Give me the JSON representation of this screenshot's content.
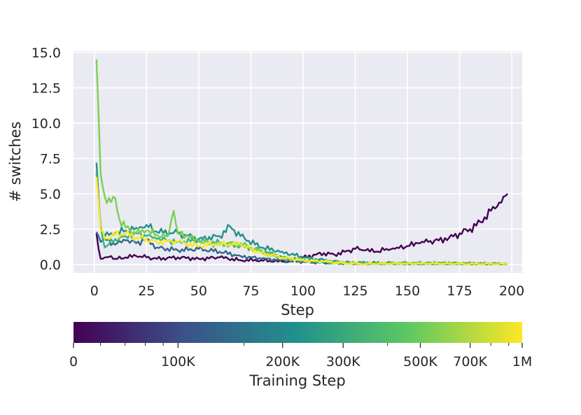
{
  "chart_data": {
    "type": "line",
    "xlabel": "Step",
    "ylabel": "# switches",
    "xlim": [
      -10,
      205
    ],
    "ylim": [
      -0.6,
      15.1
    ],
    "xticks": [
      0,
      25,
      50,
      75,
      100,
      125,
      150,
      175,
      200
    ],
    "yticks": [
      "0.0",
      "2.5",
      "5.0",
      "7.5",
      "10.0",
      "12.5",
      "15.0"
    ],
    "grid": true,
    "background": "#eaeaf2",
    "series": [
      {
        "color": "#440154",
        "x": [
          1,
          3,
          5,
          8,
          10,
          15,
          20,
          25,
          30,
          40,
          50,
          60,
          70,
          80,
          90,
          95,
          100,
          110,
          115,
          120,
          125,
          130,
          135,
          140,
          145,
          150,
          155,
          160,
          165,
          170,
          175,
          180,
          185,
          190,
          193,
          196,
          198
        ],
        "y": [
          2.2,
          0.4,
          0.5,
          0.6,
          0.4,
          0.5,
          0.6,
          0.5,
          0.4,
          0.5,
          0.4,
          0.5,
          0.3,
          0.3,
          0.2,
          0.2,
          0.5,
          0.8,
          0.7,
          0.9,
          1.1,
          1.0,
          0.9,
          1.1,
          1.2,
          1.3,
          1.5,
          1.6,
          1.7,
          1.9,
          2.2,
          2.5,
          3.0,
          3.8,
          4.1,
          4.8,
          5.0
        ]
      },
      {
        "color": "#31688e",
        "x": [
          1,
          3,
          5,
          10,
          15,
          20,
          25,
          30,
          40,
          50,
          60,
          70,
          80,
          90,
          100,
          110,
          120,
          130,
          150,
          175,
          198
        ],
        "y": [
          2.3,
          1.6,
          1.8,
          1.4,
          1.7,
          1.5,
          1.8,
          1.2,
          1.0,
          1.1,
          0.9,
          0.6,
          0.4,
          0.3,
          0.2,
          0.1,
          0.1,
          0.05,
          0.05,
          0.02,
          0.0
        ]
      },
      {
        "color": "#21918c",
        "x": [
          1,
          3,
          5,
          10,
          15,
          20,
          25,
          30,
          40,
          50,
          60,
          65,
          70,
          80,
          90,
          100,
          110,
          120,
          130,
          150,
          175,
          198
        ],
        "y": [
          7.2,
          2.5,
          2.0,
          2.2,
          2.4,
          2.6,
          2.8,
          2.3,
          2.2,
          1.8,
          2.0,
          2.7,
          2.0,
          1.2,
          0.9,
          0.5,
          0.3,
          0.1,
          0.1,
          0.05,
          0.05,
          0.0
        ]
      },
      {
        "color": "#35b779",
        "x": [
          1,
          3,
          5,
          10,
          15,
          20,
          25,
          30,
          40,
          50,
          60,
          70,
          80,
          90,
          100,
          110,
          120,
          130,
          150,
          175,
          198
        ],
        "y": [
          6.5,
          2.8,
          1.2,
          1.8,
          2.0,
          2.2,
          2.0,
          1.8,
          1.6,
          1.7,
          1.5,
          1.3,
          1.0,
          0.5,
          0.3,
          0.2,
          0.1,
          0.1,
          0.05,
          0.05,
          0.0
        ]
      },
      {
        "color": "#7ad151",
        "x": [
          1,
          3,
          5,
          8,
          10,
          12,
          15,
          20,
          25,
          30,
          35,
          38,
          40,
          45,
          50,
          60,
          70,
          80,
          90,
          100,
          110,
          120,
          130,
          150,
          175,
          198
        ],
        "y": [
          14.5,
          6.4,
          4.8,
          4.4,
          4.7,
          3.2,
          2.6,
          2.2,
          2.4,
          2.1,
          2.0,
          3.8,
          2.2,
          2.0,
          1.6,
          1.4,
          1.5,
          0.9,
          0.4,
          0.3,
          0.2,
          0.1,
          0.05,
          0.1,
          0.1,
          0.0
        ]
      },
      {
        "color": "#fde725",
        "x": [
          1,
          3,
          5,
          10,
          15,
          20,
          25,
          30,
          40,
          50,
          60,
          70,
          80,
          90,
          100,
          110,
          120,
          130,
          150,
          175,
          198
        ],
        "y": [
          6.2,
          2.4,
          1.8,
          2.1,
          2.2,
          1.9,
          1.8,
          1.6,
          1.6,
          1.3,
          1.5,
          1.4,
          0.8,
          0.5,
          0.3,
          0.2,
          0.1,
          0.05,
          0.05,
          0.02,
          0.0
        ]
      }
    ]
  },
  "colorbar": {
    "label": "Training Step",
    "ticks": [
      {
        "label": "0",
        "frac": 0.0
      },
      {
        "label": "100K",
        "frac": 0.233
      },
      {
        "label": "200K",
        "frac": 0.466
      },
      {
        "label": "300K",
        "frac": 0.601
      },
      {
        "label": "500K",
        "frac": 0.773
      },
      {
        "label": "700K",
        "frac": 0.884
      },
      {
        "label": "1M",
        "frac": 1.0
      }
    ],
    "minor_ticks": [
      0.06,
      0.115,
      0.16,
      0.2,
      0.38,
      0.7,
      0.93,
      0.97
    ],
    "stops": [
      "#440154",
      "#3b528b",
      "#21918c",
      "#5ec962",
      "#fde725"
    ]
  }
}
